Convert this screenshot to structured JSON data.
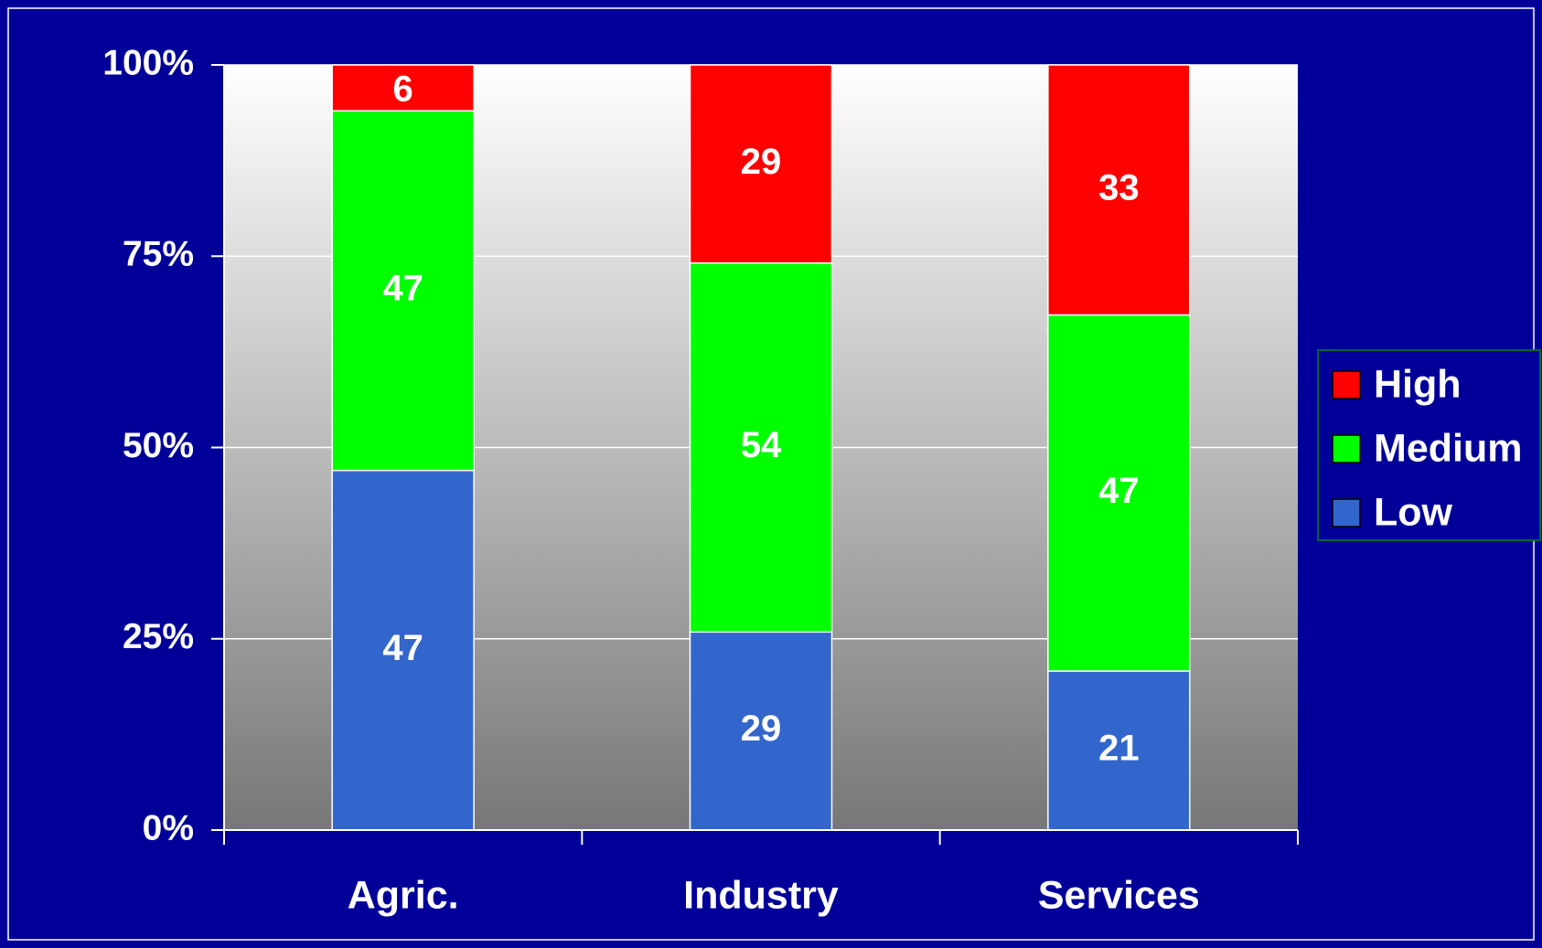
{
  "chart_data": {
    "type": "bar",
    "stacked": "percent",
    "categories": [
      "Agric.",
      "Industry",
      "Services"
    ],
    "series": [
      {
        "name": "Low",
        "color": "#3366cc",
        "values": [
          47,
          29,
          21
        ]
      },
      {
        "name": "Medium",
        "color": "#00ff00",
        "values": [
          47,
          54,
          47
        ]
      },
      {
        "name": "High",
        "color": "#ff0000",
        "values": [
          6,
          29,
          33
        ]
      }
    ],
    "ylim": [
      0,
      100
    ],
    "yticks": [
      {
        "value": 0,
        "label": "0%"
      },
      {
        "value": 25,
        "label": "25%"
      },
      {
        "value": 50,
        "label": "50%"
      },
      {
        "value": 75,
        "label": "75%"
      },
      {
        "value": 100,
        "label": "100%"
      }
    ],
    "grid": true,
    "legend": "right"
  }
}
